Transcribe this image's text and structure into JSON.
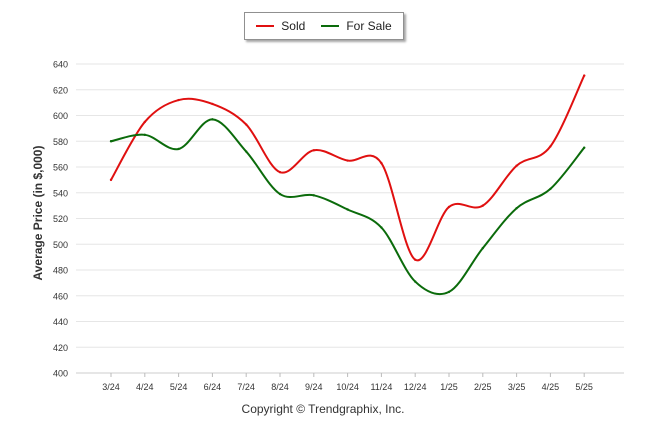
{
  "legend": {
    "items": [
      {
        "label": "Sold",
        "color": "#e01010"
      },
      {
        "label": "For Sale",
        "color": "#0b6b0b"
      }
    ]
  },
  "credit": "Copyright © Trendgraphix, Inc.",
  "chart_data": {
    "type": "line",
    "title": "",
    "xlabel": "",
    "ylabel": "Average Price (in $,000)",
    "ylim": [
      400,
      640
    ],
    "ytick_step": 20,
    "grid": true,
    "legend_position": "top-center",
    "categories": [
      "3/24",
      "4/24",
      "5/24",
      "6/24",
      "7/24",
      "8/24",
      "9/24",
      "10/24",
      "11/24",
      "12/24",
      "1/25",
      "2/25",
      "3/25",
      "4/25",
      "5/25"
    ],
    "series": [
      {
        "name": "Sold",
        "color": "#e01010",
        "values": [
          550,
          595,
          612,
          609,
          593,
          556,
          573,
          565,
          563,
          488,
          529,
          530,
          561,
          576,
          631
        ]
      },
      {
        "name": "For Sale",
        "color": "#0b6b0b",
        "values": [
          580,
          585,
          574,
          597,
          572,
          539,
          538,
          527,
          513,
          471,
          463,
          497,
          528,
          543,
          575
        ]
      }
    ]
  }
}
